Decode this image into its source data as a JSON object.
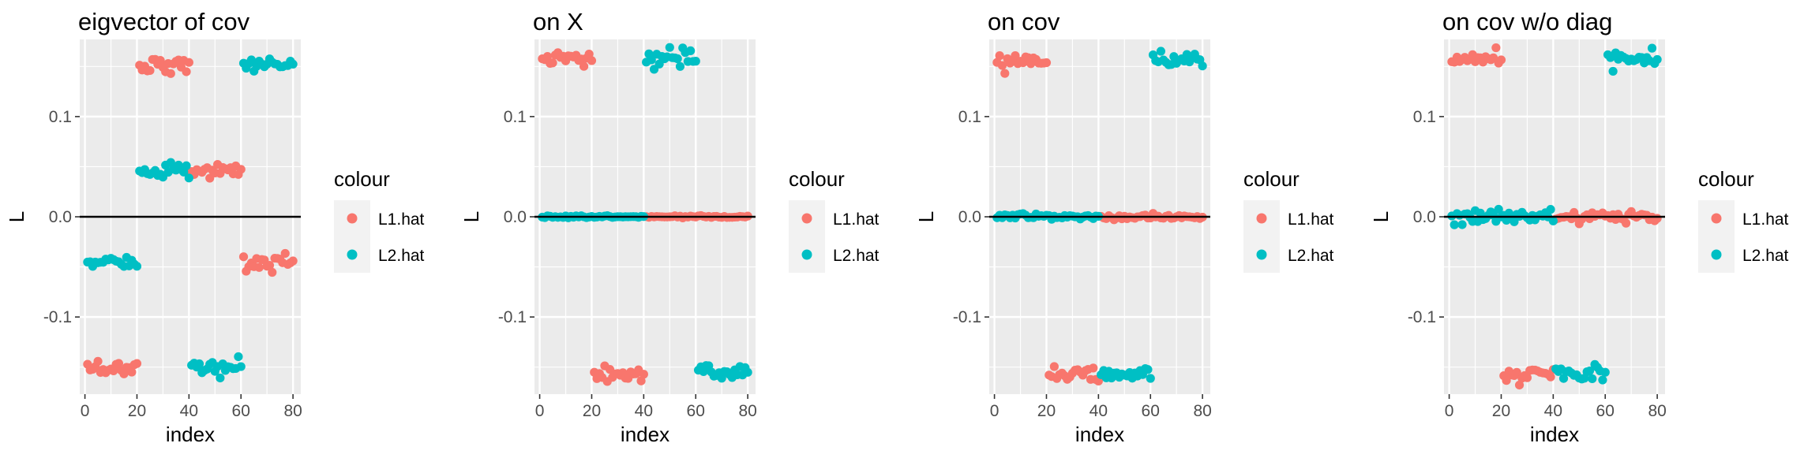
{
  "chart_data": [
    {
      "type": "scatter",
      "title": "eigvector of cov",
      "xlabel": "index",
      "ylabel": "L",
      "xlim": [
        -2,
        83
      ],
      "ylim": [
        -0.177,
        0.177
      ],
      "x_ticks": [
        0,
        20,
        40,
        60,
        80
      ],
      "y_ticks": [
        -0.1,
        0.0,
        0.1
      ],
      "y_tick_labels": [
        "-0.1",
        "0.0",
        "0.1"
      ],
      "hline": 0,
      "grid": true,
      "legend": {
        "title": "colour",
        "position": "right",
        "entries": [
          "L1.hat",
          "L2.hat"
        ]
      },
      "series": [
        {
          "name": "L1.hat",
          "color": "#F8766D",
          "segments": [
            {
              "x_from": 1,
              "x_to": 20,
              "y": -0.151,
              "noise": 0.004
            },
            {
              "x_from": 21,
              "x_to": 40,
              "y": 0.152,
              "noise": 0.004
            },
            {
              "x_from": 41,
              "x_to": 60,
              "y": 0.046,
              "noise": 0.003
            },
            {
              "x_from": 61,
              "x_to": 80,
              "y": -0.046,
              "noise": 0.005
            }
          ]
        },
        {
          "name": "L2.hat",
          "color": "#00BFC4",
          "segments": [
            {
              "x_from": 1,
              "x_to": 20,
              "y": -0.046,
              "noise": 0.003
            },
            {
              "x_from": 21,
              "x_to": 40,
              "y": 0.047,
              "noise": 0.004
            },
            {
              "x_from": 41,
              "x_to": 60,
              "y": -0.152,
              "noise": 0.004
            },
            {
              "x_from": 61,
              "x_to": 80,
              "y": 0.151,
              "noise": 0.003
            }
          ]
        }
      ]
    },
    {
      "type": "scatter",
      "title": "on X",
      "xlabel": "index",
      "ylabel": "L",
      "xlim": [
        -2,
        83
      ],
      "ylim": [
        -0.177,
        0.177
      ],
      "x_ticks": [
        0,
        20,
        40,
        60,
        80
      ],
      "y_ticks": [
        -0.1,
        0.0,
        0.1
      ],
      "y_tick_labels": [
        "-0.1",
        "0.0",
        "0.1"
      ],
      "hline": 0,
      "grid": true,
      "legend": {
        "title": "colour",
        "position": "right",
        "entries": [
          "L1.hat",
          "L2.hat"
        ]
      },
      "series": [
        {
          "name": "L1.hat",
          "color": "#F8766D",
          "segments": [
            {
              "x_from": 1,
              "x_to": 20,
              "y": 0.157,
              "noise": 0.004
            },
            {
              "x_from": 21,
              "x_to": 40,
              "y": -0.158,
              "noise": 0.004
            },
            {
              "x_from": 41,
              "x_to": 80,
              "y": 0.0,
              "noise": 0.0005
            }
          ]
        },
        {
          "name": "L2.hat",
          "color": "#00BFC4",
          "segments": [
            {
              "x_from": 1,
              "x_to": 40,
              "y": 0.0,
              "noise": 0.0005
            },
            {
              "x_from": 41,
              "x_to": 60,
              "y": 0.158,
              "noise": 0.004
            },
            {
              "x_from": 61,
              "x_to": 80,
              "y": -0.157,
              "noise": 0.004
            }
          ]
        }
      ]
    },
    {
      "type": "scatter",
      "title": "on cov",
      "xlabel": "index",
      "ylabel": "L",
      "xlim": [
        -2,
        83
      ],
      "ylim": [
        -0.177,
        0.177
      ],
      "x_ticks": [
        0,
        20,
        40,
        60,
        80
      ],
      "y_ticks": [
        -0.1,
        0.0,
        0.1
      ],
      "y_tick_labels": [
        "-0.1",
        "0.0",
        "0.1"
      ],
      "hline": 0,
      "grid": true,
      "legend": {
        "title": "colour",
        "position": "right",
        "entries": [
          "L1.hat",
          "L2.hat"
        ]
      },
      "series": [
        {
          "name": "L1.hat",
          "color": "#F8766D",
          "segments": [
            {
              "x_from": 1,
              "x_to": 20,
              "y": 0.157,
              "noise": 0.004
            },
            {
              "x_from": 21,
              "x_to": 40,
              "y": -0.157,
              "noise": 0.005
            },
            {
              "x_from": 41,
              "x_to": 80,
              "y": 0.0,
              "noise": 0.0015
            }
          ]
        },
        {
          "name": "L2.hat",
          "color": "#00BFC4",
          "segments": [
            {
              "x_from": 1,
              "x_to": 40,
              "y": 0.0,
              "noise": 0.0015
            },
            {
              "x_from": 41,
              "x_to": 60,
              "y": -0.157,
              "noise": 0.004
            },
            {
              "x_from": 61,
              "x_to": 80,
              "y": 0.157,
              "noise": 0.004
            }
          ]
        }
      ]
    },
    {
      "type": "scatter",
      "title": "on cov w/o diag",
      "xlabel": "index",
      "ylabel": "L",
      "xlim": [
        -2,
        83
      ],
      "ylim": [
        -0.177,
        0.177
      ],
      "x_ticks": [
        0,
        20,
        40,
        60,
        80
      ],
      "y_ticks": [
        -0.1,
        0.0,
        0.1
      ],
      "y_tick_labels": [
        "-0.1",
        "0.0",
        "0.1"
      ],
      "hline": 0,
      "grid": true,
      "legend": {
        "title": "colour",
        "position": "right",
        "entries": [
          "L1.hat",
          "L2.hat"
        ]
      },
      "series": [
        {
          "name": "L1.hat",
          "color": "#F8766D",
          "segments": [
            {
              "x_from": 1,
              "x_to": 20,
              "y": 0.157,
              "noise": 0.004
            },
            {
              "x_from": 21,
              "x_to": 40,
              "y": -0.157,
              "noise": 0.004
            },
            {
              "x_from": 41,
              "x_to": 80,
              "y": 0.0,
              "noise": 0.003
            }
          ]
        },
        {
          "name": "L2.hat",
          "color": "#00BFC4",
          "segments": [
            {
              "x_from": 1,
              "x_to": 40,
              "y": 0.0,
              "noise": 0.003
            },
            {
              "x_from": 41,
              "x_to": 60,
              "y": -0.157,
              "noise": 0.004
            },
            {
              "x_from": 61,
              "x_to": 80,
              "y": 0.157,
              "noise": 0.004
            }
          ]
        }
      ]
    }
  ]
}
